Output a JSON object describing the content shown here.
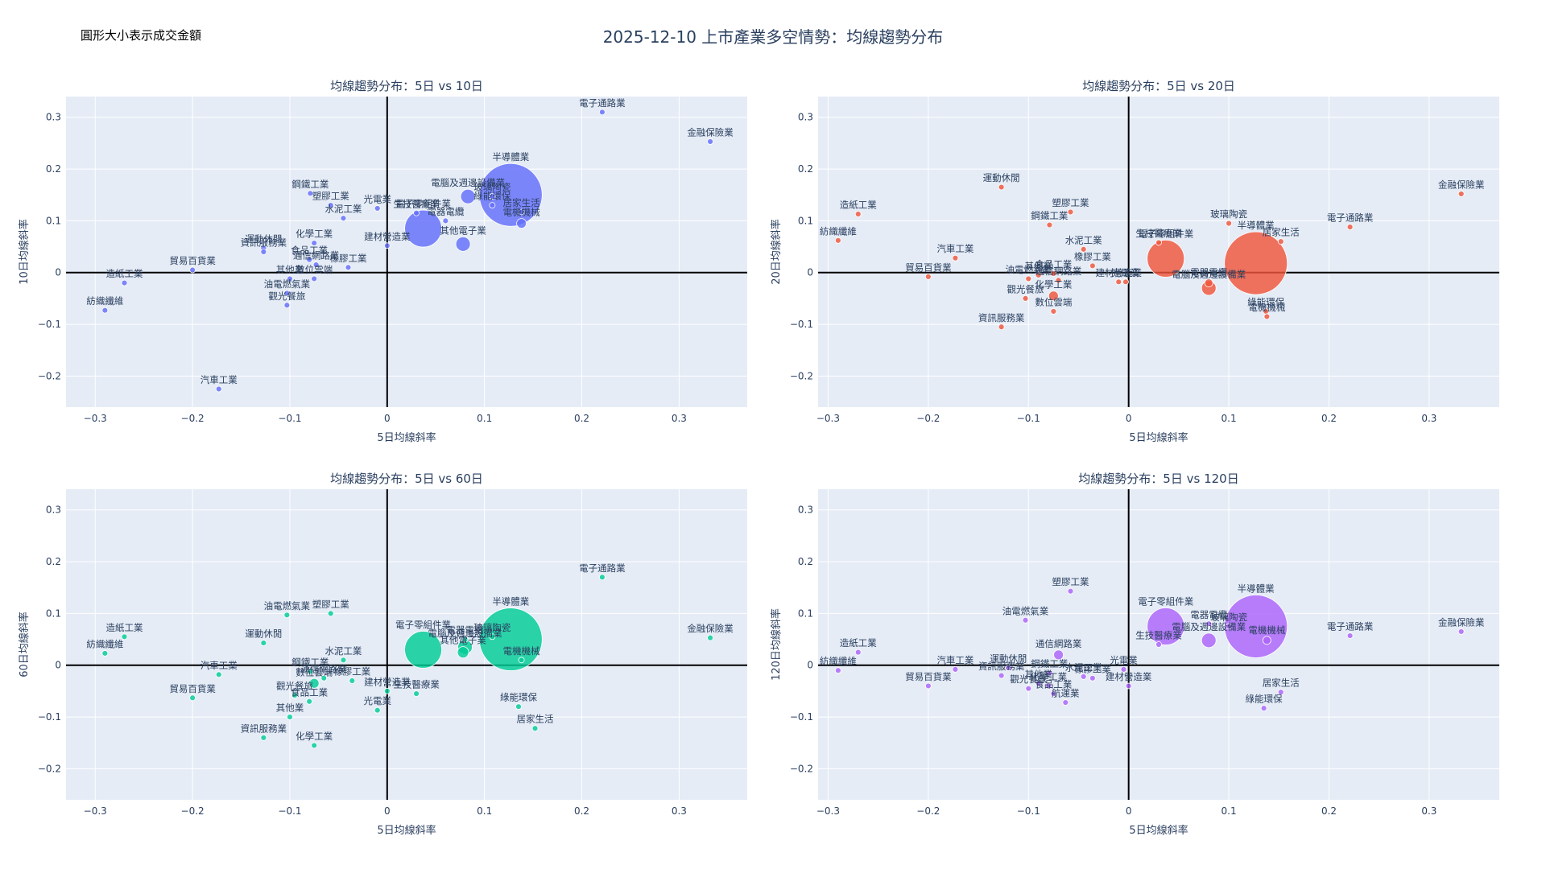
{
  "title": "2025-12-10 上市產業多空情勢：均線趨勢分布",
  "size_note": "圓形大小表示成交金額",
  "colors": {
    "p10": "#636efa",
    "p20": "#ef553b",
    "p60": "#00cc96",
    "p120": "#ab63fa"
  },
  "chart_data": [
    {
      "type": "scatter",
      "title": "均線趨勢分布：5日 vs 10日",
      "xlabel": "5日均線斜率",
      "ylabel": "10日均線斜率",
      "xlim": [
        -0.33,
        0.37
      ],
      "ylim": [
        -0.26,
        0.34
      ],
      "xticks": [
        -0.3,
        -0.2,
        -0.1,
        0,
        0.1,
        0.2,
        0.3
      ],
      "yticks": [
        -0.2,
        -0.1,
        0,
        0.1,
        0.2,
        0.3
      ],
      "color_key": "p10",
      "points": [
        {
          "label": "電子通路業",
          "x": 0.221,
          "y": 0.31,
          "size": 7
        },
        {
          "label": "金融保險業",
          "x": 0.332,
          "y": 0.253,
          "size": 7
        },
        {
          "label": "半導體業",
          "x": 0.127,
          "y": 0.15,
          "size": 78
        },
        {
          "label": "電腦及週邊設備業",
          "x": 0.083,
          "y": 0.147,
          "size": 18
        },
        {
          "label": "玻璃陶瓷",
          "x": 0.108,
          "y": 0.147,
          "size": 7
        },
        {
          "label": "綠能環保",
          "x": 0.108,
          "y": 0.13,
          "size": 7
        },
        {
          "label": "居家生活",
          "x": 0.138,
          "y": 0.117,
          "size": 7
        },
        {
          "label": "電機機械",
          "x": 0.138,
          "y": 0.095,
          "size": 12
        },
        {
          "label": "電子零組件業",
          "x": 0.037,
          "y": 0.085,
          "size": 46
        },
        {
          "label": "生技醫療業",
          "x": 0.03,
          "y": 0.115,
          "size": 7
        },
        {
          "label": "電器電纜",
          "x": 0.06,
          "y": 0.1,
          "size": 7
        },
        {
          "label": "其他電子業",
          "x": 0.078,
          "y": 0.055,
          "size": 18
        },
        {
          "label": "鋼鐵工業",
          "x": -0.079,
          "y": 0.153,
          "size": 7
        },
        {
          "label": "塑膠工業",
          "x": -0.058,
          "y": 0.13,
          "size": 7
        },
        {
          "label": "光電業",
          "x": -0.01,
          "y": 0.124,
          "size": 7
        },
        {
          "label": "水泥工業",
          "x": -0.045,
          "y": 0.105,
          "size": 7
        },
        {
          "label": "建材營造業",
          "x": 0.0,
          "y": 0.052,
          "size": 7
        },
        {
          "label": "化學工業",
          "x": -0.075,
          "y": 0.057,
          "size": 7
        },
        {
          "label": "運動休閒",
          "x": -0.127,
          "y": 0.047,
          "size": 7
        },
        {
          "label": "資訊服務業",
          "x": -0.127,
          "y": 0.04,
          "size": 7
        },
        {
          "label": "貿易百貨業",
          "x": -0.2,
          "y": 0.005,
          "size": 7
        },
        {
          "label": "食品工業",
          "x": -0.08,
          "y": 0.025,
          "size": 7
        },
        {
          "label": "通信網路業",
          "x": -0.073,
          "y": 0.015,
          "size": 7
        },
        {
          "label": "橡膠工業",
          "x": -0.04,
          "y": 0.01,
          "size": 7
        },
        {
          "label": "其他業",
          "x": -0.1,
          "y": -0.012,
          "size": 7
        },
        {
          "label": "數位雲端",
          "x": -0.075,
          "y": -0.012,
          "size": 7
        },
        {
          "label": "造紙工業",
          "x": -0.27,
          "y": -0.02,
          "size": 7
        },
        {
          "label": "油電燃氣業",
          "x": -0.103,
          "y": -0.04,
          "size": 7
        },
        {
          "label": "觀光餐旅",
          "x": -0.103,
          "y": -0.063,
          "size": 7
        },
        {
          "label": "紡織纖維",
          "x": -0.29,
          "y": -0.073,
          "size": 7
        },
        {
          "label": "汽車工業",
          "x": -0.173,
          "y": -0.225,
          "size": 7
        }
      ]
    },
    {
      "type": "scatter",
      "title": "均線趨勢分布：5日 vs 20日",
      "xlabel": "5日均線斜率",
      "ylabel": "20日均線斜率",
      "xlim": [
        -0.31,
        0.37
      ],
      "ylim": [
        -0.26,
        0.34
      ],
      "xticks": [
        -0.3,
        -0.2,
        -0.1,
        0,
        0.1,
        0.2,
        0.3
      ],
      "yticks": [
        -0.2,
        -0.1,
        0,
        0.1,
        0.2,
        0.3
      ],
      "color_key": "p20",
      "points": [
        {
          "label": "金融保險業",
          "x": 0.332,
          "y": 0.152,
          "size": 7
        },
        {
          "label": "電子通路業",
          "x": 0.221,
          "y": 0.088,
          "size": 7
        },
        {
          "label": "半導體業",
          "x": 0.127,
          "y": 0.018,
          "size": 78
        },
        {
          "label": "玻璃陶瓷",
          "x": 0.1,
          "y": 0.095,
          "size": 7
        },
        {
          "label": "居家生活",
          "x": 0.152,
          "y": 0.06,
          "size": 7
        },
        {
          "label": "電子零組件業",
          "x": 0.037,
          "y": 0.027,
          "size": 46
        },
        {
          "label": "生技醫療業",
          "x": 0.03,
          "y": 0.058,
          "size": 7
        },
        {
          "label": "電器電纜",
          "x": 0.08,
          "y": -0.02,
          "size": 10
        },
        {
          "label": "電腦及週邊設備業",
          "x": 0.08,
          "y": -0.03,
          "size": 18
        },
        {
          "label": "綠能環保",
          "x": 0.137,
          "y": -0.075,
          "size": 7
        },
        {
          "label": "電機機械",
          "x": 0.138,
          "y": -0.085,
          "size": 7
        },
        {
          "label": "運動休閒",
          "x": -0.127,
          "y": 0.165,
          "size": 7
        },
        {
          "label": "造紙工業",
          "x": -0.27,
          "y": 0.113,
          "size": 7
        },
        {
          "label": "塑膠工業",
          "x": -0.058,
          "y": 0.117,
          "size": 7
        },
        {
          "label": "鋼鐵工業",
          "x": -0.079,
          "y": 0.092,
          "size": 7
        },
        {
          "label": "紡織纖維",
          "x": -0.29,
          "y": 0.062,
          "size": 7
        },
        {
          "label": "水泥工業",
          "x": -0.045,
          "y": 0.045,
          "size": 7
        },
        {
          "label": "汽車工業",
          "x": -0.173,
          "y": 0.028,
          "size": 7
        },
        {
          "label": "橡膠工業",
          "x": -0.036,
          "y": 0.013,
          "size": 7
        },
        {
          "label": "貿易百貨業",
          "x": -0.2,
          "y": -0.008,
          "size": 7
        },
        {
          "label": "其他業",
          "x": -0.09,
          "y": -0.005,
          "size": 7
        },
        {
          "label": "食品工業",
          "x": -0.075,
          "y": -0.002,
          "size": 7
        },
        {
          "label": "通信網路業",
          "x": -0.07,
          "y": -0.015,
          "size": 7
        },
        {
          "label": "油電燃氣業",
          "x": -0.1,
          "y": -0.012,
          "size": 7
        },
        {
          "label": "建材營造業",
          "x": -0.01,
          "y": -0.018,
          "size": 7
        },
        {
          "label": "光電業",
          "x": -0.003,
          "y": -0.018,
          "size": 7
        },
        {
          "label": "觀光餐旅",
          "x": -0.103,
          "y": -0.05,
          "size": 7
        },
        {
          "label": "化學工業",
          "x": -0.075,
          "y": -0.045,
          "size": 12
        },
        {
          "label": "數位雲端",
          "x": -0.075,
          "y": -0.075,
          "size": 7
        },
        {
          "label": "資訊服務業",
          "x": -0.127,
          "y": -0.105,
          "size": 7
        }
      ]
    },
    {
      "type": "scatter",
      "title": "均線趨勢分布：5日 vs 60日",
      "xlabel": "5日均線斜率",
      "ylabel": "60日均線斜率",
      "xlim": [
        -0.33,
        0.37
      ],
      "ylim": [
        -0.26,
        0.34
      ],
      "xticks": [
        -0.3,
        -0.2,
        -0.1,
        0,
        0.1,
        0.2,
        0.3
      ],
      "yticks": [
        -0.2,
        -0.1,
        0,
        0.1,
        0.2,
        0.3
      ],
      "color_key": "p60",
      "points": [
        {
          "label": "電子通路業",
          "x": 0.221,
          "y": 0.17,
          "size": 7
        },
        {
          "label": "半導體業",
          "x": 0.127,
          "y": 0.05,
          "size": 78
        },
        {
          "label": "金融保險業",
          "x": 0.332,
          "y": 0.053,
          "size": 7
        },
        {
          "label": "電機機械",
          "x": 0.138,
          "y": 0.01,
          "size": 7
        },
        {
          "label": "電子零組件業",
          "x": 0.037,
          "y": 0.03,
          "size": 46
        },
        {
          "label": "電器電纜",
          "x": 0.08,
          "y": 0.05,
          "size": 7
        },
        {
          "label": "電腦及週邊設備業",
          "x": 0.08,
          "y": 0.035,
          "size": 18
        },
        {
          "label": "玻璃陶瓷",
          "x": 0.108,
          "y": 0.055,
          "size": 7
        },
        {
          "label": "其他電子業",
          "x": 0.078,
          "y": 0.025,
          "size": 14
        },
        {
          "label": "生技醫療業",
          "x": 0.03,
          "y": -0.055,
          "size": 7
        },
        {
          "label": "綠能環保",
          "x": 0.135,
          "y": -0.08,
          "size": 7
        },
        {
          "label": "居家生活",
          "x": 0.152,
          "y": -0.122,
          "size": 7
        },
        {
          "label": "塑膠工業",
          "x": -0.058,
          "y": 0.1,
          "size": 7
        },
        {
          "label": "油電燃氣業",
          "x": -0.103,
          "y": 0.097,
          "size": 7
        },
        {
          "label": "造紙工業",
          "x": -0.27,
          "y": 0.055,
          "size": 7
        },
        {
          "label": "運動休閒",
          "x": -0.127,
          "y": 0.043,
          "size": 7
        },
        {
          "label": "紡織纖維",
          "x": -0.29,
          "y": 0.023,
          "size": 7
        },
        {
          "label": "水泥工業",
          "x": -0.045,
          "y": 0.01,
          "size": 7
        },
        {
          "label": "汽車工業",
          "x": -0.173,
          "y": -0.018,
          "size": 7
        },
        {
          "label": "鋼鐵工業",
          "x": -0.079,
          "y": -0.012,
          "size": 7
        },
        {
          "label": "通信網路業",
          "x": -0.065,
          "y": -0.025,
          "size": 7
        },
        {
          "label": "橡膠工業",
          "x": -0.036,
          "y": -0.03,
          "size": 7
        },
        {
          "label": "數位雲端",
          "x": -0.075,
          "y": -0.035,
          "size": 12
        },
        {
          "label": "建材營造業",
          "x": 0.0,
          "y": -0.05,
          "size": 7
        },
        {
          "label": "貿易百貨業",
          "x": -0.2,
          "y": -0.063,
          "size": 7
        },
        {
          "label": "觀光餐旅",
          "x": -0.095,
          "y": -0.058,
          "size": 7
        },
        {
          "label": "光電業",
          "x": -0.01,
          "y": -0.087,
          "size": 7
        },
        {
          "label": "食品工業",
          "x": -0.08,
          "y": -0.07,
          "size": 7
        },
        {
          "label": "其他業",
          "x": -0.1,
          "y": -0.1,
          "size": 7
        },
        {
          "label": "資訊服務業",
          "x": -0.127,
          "y": -0.14,
          "size": 7
        },
        {
          "label": "化學工業",
          "x": -0.075,
          "y": -0.155,
          "size": 7
        }
      ]
    },
    {
      "type": "scatter",
      "title": "均線趨勢分布：5日 vs 120日",
      "xlabel": "5日均線斜率",
      "ylabel": "120日均線斜率",
      "xlim": [
        -0.31,
        0.37
      ],
      "ylim": [
        -0.26,
        0.34
      ],
      "xticks": [
        -0.3,
        -0.2,
        -0.1,
        0,
        0.1,
        0.2,
        0.3
      ],
      "yticks": [
        -0.2,
        -0.1,
        0,
        0.1,
        0.2,
        0.3
      ],
      "color_key": "p120",
      "points": [
        {
          "label": "半導體業",
          "x": 0.127,
          "y": 0.075,
          "size": 78
        },
        {
          "label": "塑膠工業",
          "x": -0.058,
          "y": 0.143,
          "size": 7
        },
        {
          "label": "電子零組件業",
          "x": 0.037,
          "y": 0.075,
          "size": 46
        },
        {
          "label": "電器電纜",
          "x": 0.08,
          "y": 0.08,
          "size": 7
        },
        {
          "label": "玻璃陶瓷",
          "x": 0.1,
          "y": 0.075,
          "size": 7
        },
        {
          "label": "電腦及週邊設備業",
          "x": 0.08,
          "y": 0.048,
          "size": 18
        },
        {
          "label": "生技醫療業",
          "x": 0.03,
          "y": 0.04,
          "size": 7
        },
        {
          "label": "電機機械",
          "x": 0.138,
          "y": 0.048,
          "size": 10
        },
        {
          "label": "電子通路業",
          "x": 0.221,
          "y": 0.057,
          "size": 7
        },
        {
          "label": "金融保險業",
          "x": 0.332,
          "y": 0.065,
          "size": 7
        },
        {
          "label": "油電燃氣業",
          "x": -0.103,
          "y": 0.087,
          "size": 7
        },
        {
          "label": "通信網路業",
          "x": -0.07,
          "y": 0.02,
          "size": 12
        },
        {
          "label": "造紙工業",
          "x": -0.27,
          "y": 0.025,
          "size": 7
        },
        {
          "label": "紡織纖維",
          "x": -0.29,
          "y": -0.01,
          "size": 7
        },
        {
          "label": "汽車工業",
          "x": -0.173,
          "y": -0.008,
          "size": 7
        },
        {
          "label": "運動休閒",
          "x": -0.12,
          "y": -0.005,
          "size": 7
        },
        {
          "label": "資訊服務業",
          "x": -0.127,
          "y": -0.02,
          "size": 7
        },
        {
          "label": "鋼鐵工業",
          "x": -0.079,
          "y": -0.015,
          "size": 7
        },
        {
          "label": "光電業",
          "x": -0.005,
          "y": -0.008,
          "size": 7
        },
        {
          "label": "水泥工業",
          "x": -0.045,
          "y": -0.022,
          "size": 7
        },
        {
          "label": "橡膠工業",
          "x": -0.036,
          "y": -0.025,
          "size": 7
        },
        {
          "label": "建材營造業",
          "x": 0.0,
          "y": -0.04,
          "size": 7
        },
        {
          "label": "貿易百貨業",
          "x": -0.2,
          "y": -0.04,
          "size": 7
        },
        {
          "label": "觀光餐旅",
          "x": -0.1,
          "y": -0.045,
          "size": 7
        },
        {
          "label": "其他業",
          "x": -0.09,
          "y": -0.035,
          "size": 7
        },
        {
          "label": "食品工業",
          "x": -0.075,
          "y": -0.055,
          "size": 7
        },
        {
          "label": "化學工業",
          "x": -0.08,
          "y": -0.04,
          "size": 7
        },
        {
          "label": "航運業",
          "x": -0.063,
          "y": -0.072,
          "size": 7
        },
        {
          "label": "居家生活",
          "x": 0.152,
          "y": -0.052,
          "size": 7
        },
        {
          "label": "綠能環保",
          "x": 0.135,
          "y": -0.083,
          "size": 7
        }
      ]
    }
  ]
}
